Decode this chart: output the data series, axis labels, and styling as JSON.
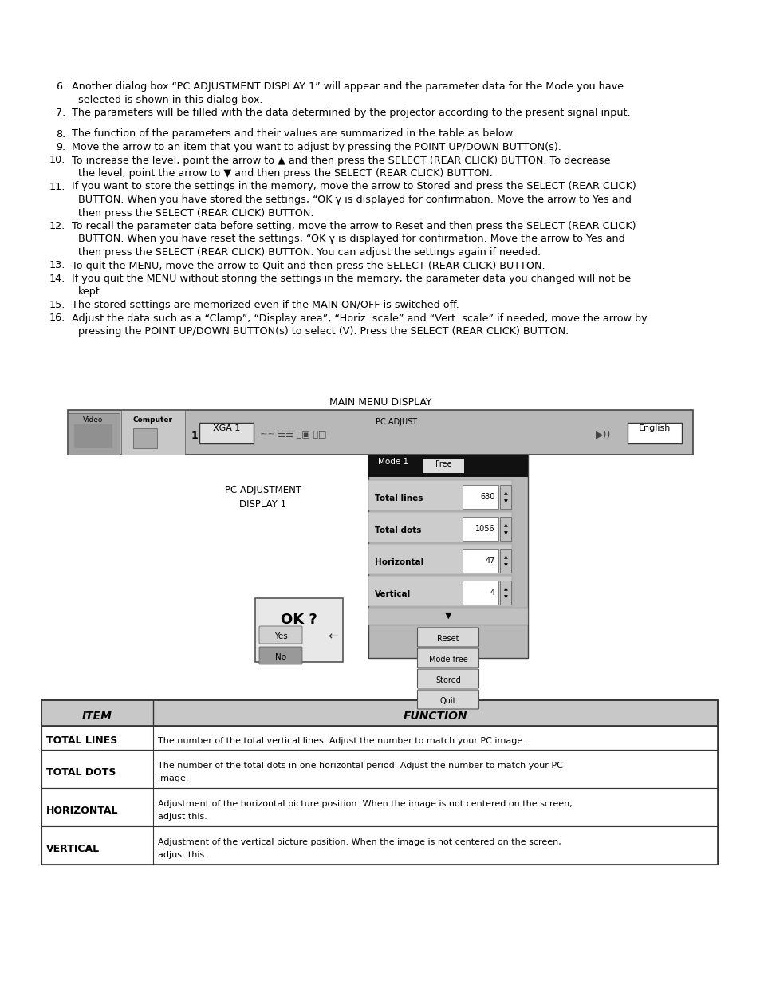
{
  "bg_color": "#ffffff",
  "text_color": "#000000",
  "body_text": [
    {
      "num": "6.",
      "text": "Another dialog box “PC ADJUSTMENT DISPLAY 1” will appear and the parameter data for the Mode you have\n    selected is shown in this dialog box."
    },
    {
      "num": "7.",
      "text": "The parameters will be filled with the data determined by the projector according to the present signal input."
    },
    {
      "num": "",
      "text": ""
    },
    {
      "num": "8.",
      "text": "The function of the parameters and their values are summarized in the table as below."
    },
    {
      "num": "9.",
      "text": "Move the arrow to an item that you want to adjust by pressing the POINT UP/DOWN BUTTON(s)."
    },
    {
      "num": "10.",
      "text": "To increase the level, point the arrow to ▲ and then press the SELECT (REAR CLICK) BUTTON. To decrease\n    the level, point the arrow to ▼ and then press the SELECT (REAR CLICK) BUTTON."
    },
    {
      "num": "11.",
      "text": "If you want to store the settings in the memory, move the arrow to Stored and press the SELECT (REAR CLICK)\n    BUTTON. When you have stored the settings, “OK γ is displayed for confirmation. Move the arrow to Yes and\n    then press the SELECT (REAR CLICK) BUTTON."
    },
    {
      "num": "12.",
      "text": "To recall the parameter data before setting, move the arrow to Reset and then press the SELECT (REAR CLICK)\n    BUTTON. When you have reset the settings, “OK γ is displayed for confirmation. Move the arrow to Yes and\n    then press the SELECT (REAR CLICK) BUTTON. You can adjust the settings again if needed."
    },
    {
      "num": "13.",
      "text": "To quit the MENU, move the arrow to Quit and then press the SELECT (REAR CLICK) BUTTON."
    },
    {
      "num": "14.",
      "text": "If you quit the MENU without storing the settings in the memory, the parameter data you changed will not be\n    kept."
    },
    {
      "num": "15.",
      "text": "The stored settings are memorized even if the MAIN ON/OFF is switched off."
    },
    {
      "num": "16.",
      "text": "Adjust the data such as a “Clamp”, “Display area”, “Horiz. scale” and “Vert. scale” if needed, move the arrow by\n    pressing the POINT UP/DOWN BUTTON(s) to select (V). Press the SELECT (REAR CLICK) BUTTON."
    }
  ],
  "table_rows": [
    {
      "item": "TOTAL LINES",
      "function": "The number of the total vertical lines. Adjust the number to match your PC image."
    },
    {
      "item": "TOTAL DOTS",
      "function": "The number of the total dots in one horizontal period. Adjust the number to match your PC\nimage."
    },
    {
      "item": "HORIZONTAL",
      "function": "Adjustment of the horizontal picture position. When the image is not centered on the screen,\nadjust this."
    },
    {
      "item": "VERTICAL",
      "function": "Adjustment of the vertical picture position. When the image is not centered on the screen,\nadjust this."
    }
  ]
}
